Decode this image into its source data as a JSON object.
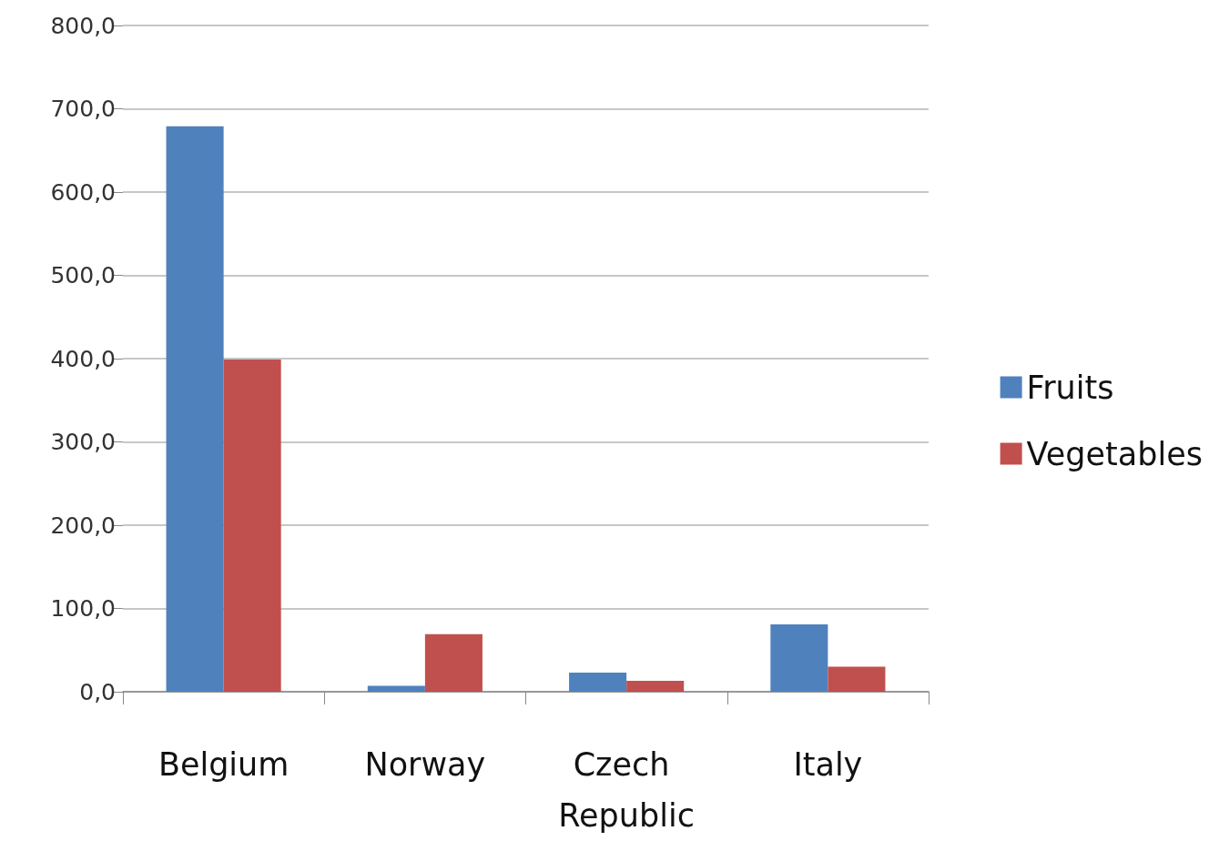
{
  "chart_data": {
    "type": "bar",
    "categories": [
      "Belgium",
      "Norway",
      "Czech Republic",
      "Italy"
    ],
    "series": [
      {
        "name": "Fruits",
        "color": "#4f81bd",
        "values": [
          679,
          7,
          23,
          81
        ]
      },
      {
        "name": "Vegetables",
        "color": "#c0504d",
        "values": [
          399,
          69,
          13,
          30
        ]
      }
    ],
    "ylim": [
      0,
      800
    ],
    "yticks": [
      {
        "value": 0,
        "label": "0,0"
      },
      {
        "value": 100,
        "label": "100,0"
      },
      {
        "value": 200,
        "label": "200,0"
      },
      {
        "value": 300,
        "label": "300,0"
      },
      {
        "value": 400,
        "label": "400,0"
      },
      {
        "value": 500,
        "label": "500,0"
      },
      {
        "value": 600,
        "label": "600,0"
      },
      {
        "value": 700,
        "label": "700,0"
      },
      {
        "value": 800,
        "label": "800,0"
      }
    ],
    "grid": "y",
    "legend": "right"
  }
}
